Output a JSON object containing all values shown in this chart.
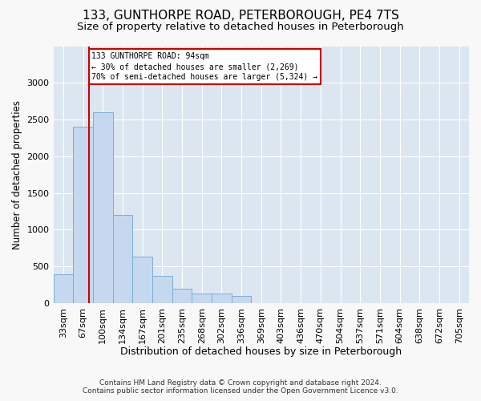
{
  "title1": "133, GUNTHORPE ROAD, PETERBOROUGH, PE4 7TS",
  "title2": "Size of property relative to detached houses in Peterborough",
  "xlabel": "Distribution of detached houses by size in Peterborough",
  "ylabel": "Number of detached properties",
  "footnote1": "Contains HM Land Registry data © Crown copyright and database right 2024.",
  "footnote2": "Contains public sector information licensed under the Open Government Licence v3.0.",
  "categories": [
    "33sqm",
    "67sqm",
    "100sqm",
    "134sqm",
    "167sqm",
    "201sqm",
    "235sqm",
    "268sqm",
    "302sqm",
    "336sqm",
    "369sqm",
    "403sqm",
    "436sqm",
    "470sqm",
    "504sqm",
    "537sqm",
    "571sqm",
    "604sqm",
    "638sqm",
    "672sqm",
    "705sqm"
  ],
  "values": [
    390,
    2400,
    2600,
    1200,
    630,
    370,
    200,
    130,
    130,
    100,
    0,
    0,
    0,
    0,
    0,
    0,
    0,
    0,
    0,
    0,
    0
  ],
  "bar_color": "#c5d8ef",
  "bar_edge_color": "#7bafd4",
  "marker_label1": "133 GUNTHORPE ROAD: 94sqm",
  "marker_label2": "← 30% of detached houses are smaller (2,269)",
  "marker_label3": "70% of semi-detached houses are larger (5,324) →",
  "annotation_box_color": "#ffffff",
  "annotation_box_edge": "#cc0000",
  "vline_color": "#cc0000",
  "ylim": [
    0,
    3500
  ],
  "yticks": [
    0,
    500,
    1000,
    1500,
    2000,
    2500,
    3000
  ],
  "plot_background_color": "#dce6f1",
  "fig_background_color": "#f8f8f8",
  "grid_color": "#ffffff",
  "title1_fontsize": 11,
  "title2_fontsize": 9.5,
  "xlabel_fontsize": 9,
  "ylabel_fontsize": 8.5,
  "tick_fontsize": 8,
  "footnote_fontsize": 6.5
}
